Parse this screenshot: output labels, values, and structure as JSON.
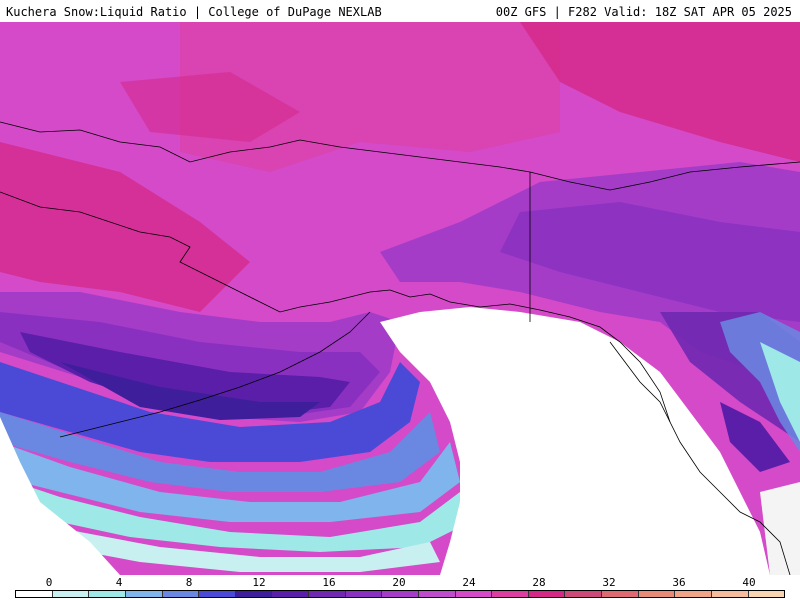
{
  "header": {
    "title_left": "Kuchera Snow:Liquid Ratio | College of DuPage NEXLAB",
    "title_right": "00Z GFS | F282 Valid: 18Z SAT APR 05 2025"
  },
  "legend": {
    "ticks": [
      "0",
      "4",
      "8",
      "12",
      "16",
      "20",
      "24",
      "28",
      "32",
      "36",
      "40"
    ],
    "colors": [
      "#ffffff",
      "#c8f0f0",
      "#9ee8e8",
      "#80b4ec",
      "#6a88e2",
      "#4a4ad6",
      "#3e1e9a",
      "#5a1ea8",
      "#7028b0",
      "#8a30c0",
      "#a43cc8",
      "#be4ccc",
      "#d44ac8",
      "#dc3ea0",
      "#d42888",
      "#cc4a7a",
      "#dc6a70",
      "#e88a78",
      "#f0a488",
      "#f4bc9c",
      "#f8d4b4"
    ]
  },
  "map": {
    "region": "Alaska and Western Canada",
    "ocean_color": "#ffffff",
    "coastline_color": "#000000"
  }
}
